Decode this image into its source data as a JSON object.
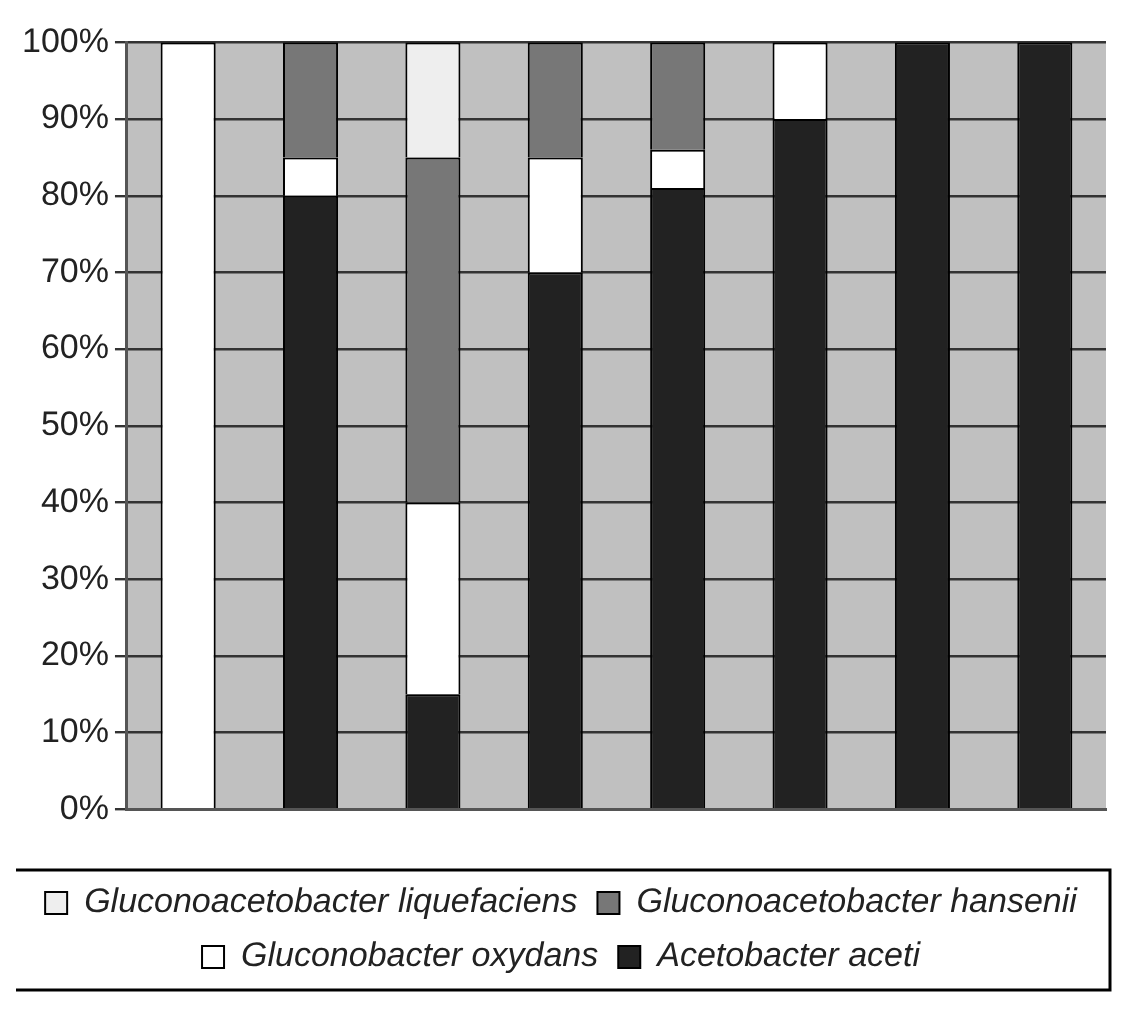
{
  "chart_data": {
    "type": "bar",
    "stacked": true,
    "categories": [
      null,
      null,
      null,
      null,
      null,
      null,
      null,
      null
    ],
    "series": [
      {
        "name": "Acetobacter aceti",
        "color": "#222222",
        "values": [
          0,
          80,
          15,
          70,
          81,
          90,
          100,
          100
        ]
      },
      {
        "name": "Gluconobacter oxydans",
        "color": "#ffffff",
        "values": [
          100,
          5,
          25,
          15,
          5,
          10,
          0,
          0
        ]
      },
      {
        "name": "Gluconoacetobacter hansenii",
        "color": "#777777",
        "values": [
          0,
          15,
          45,
          15,
          14,
          0,
          0,
          0
        ]
      },
      {
        "name": "Gluconoacetobacter liquefaciens",
        "color": "#eeeeee",
        "values": [
          0,
          0,
          15,
          0,
          0,
          0,
          0,
          0
        ]
      }
    ],
    "ylim": [
      0,
      100
    ],
    "yticks": [
      {
        "value": 0,
        "label": "0%"
      },
      {
        "value": 10,
        "label": "10%"
      },
      {
        "value": 20,
        "label": "20%"
      },
      {
        "value": 30,
        "label": "30%"
      },
      {
        "value": 40,
        "label": "40%"
      },
      {
        "value": 50,
        "label": "50%"
      },
      {
        "value": 60,
        "label": "60%"
      },
      {
        "value": 70,
        "label": "70%"
      },
      {
        "value": 80,
        "label": "80%"
      },
      {
        "value": 90,
        "label": "90%"
      },
      {
        "value": 100,
        "label": "100%"
      }
    ],
    "grid": "y",
    "legend": "bottom"
  }
}
